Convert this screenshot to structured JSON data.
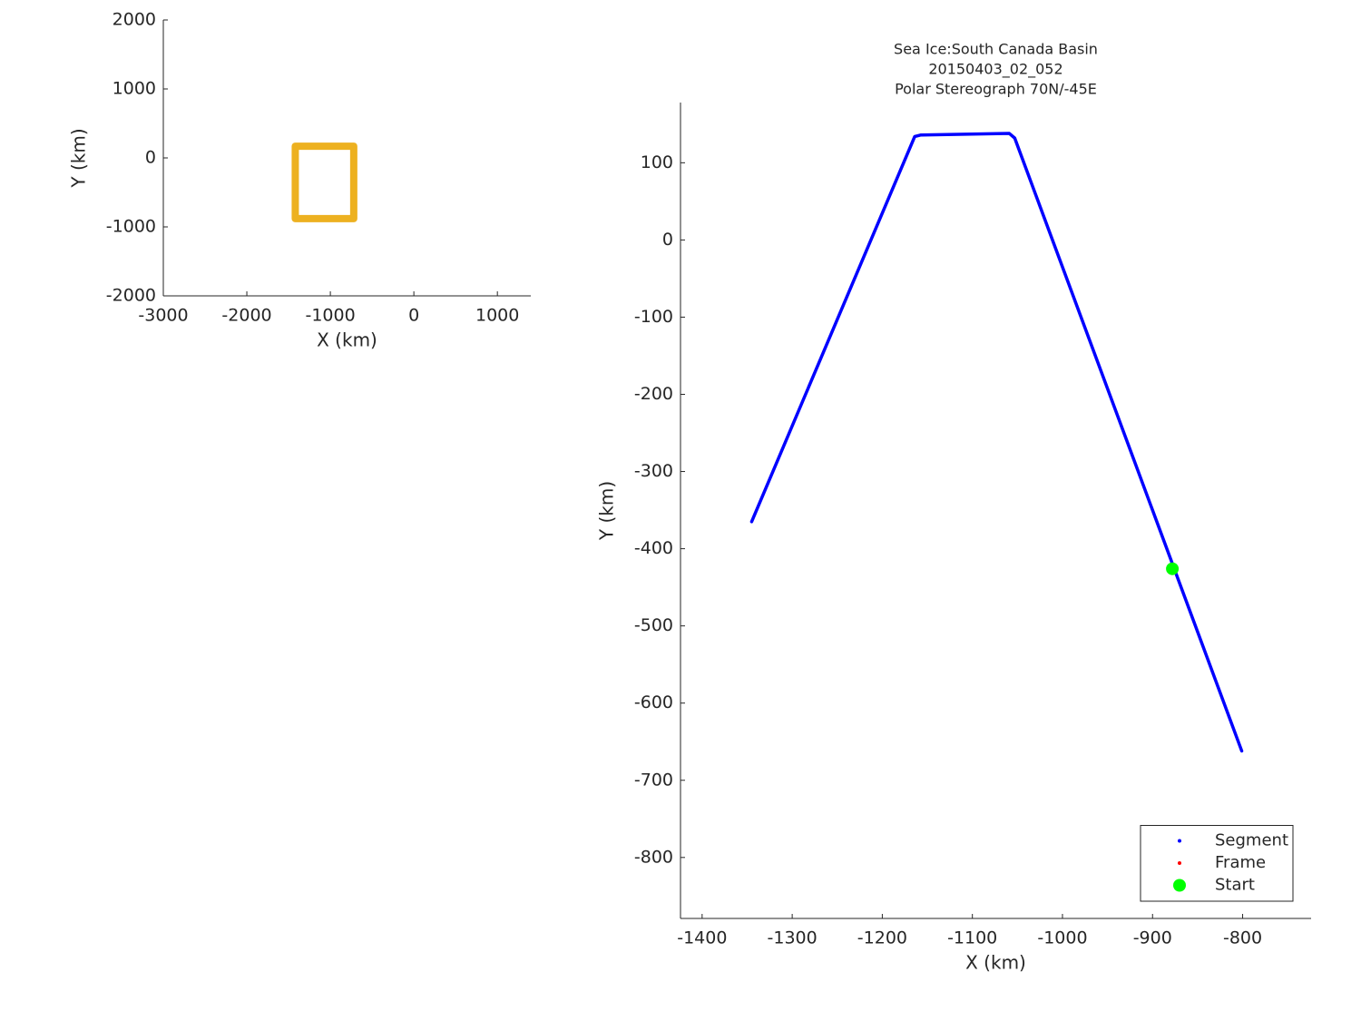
{
  "chart_data": [
    {
      "type": "line",
      "xlabel": "X (km)",
      "ylabel": "Y (km)",
      "xlim": [
        -3000,
        1400
      ],
      "ylim": [
        -2000,
        2000
      ],
      "xticks": [
        -3000,
        -2000,
        -1000,
        0,
        1000
      ],
      "yticks": [
        -2000,
        -1000,
        0,
        1000,
        2000
      ],
      "series": [
        {
          "color": "#edb120",
          "style": "line",
          "x": [
            -1420,
            -720,
            -720,
            -1420,
            -1420
          ],
          "y": [
            170,
            170,
            -880,
            -880,
            170
          ]
        }
      ]
    },
    {
      "type": "line",
      "title": [
        "Sea Ice:South Canada Basin",
        "20150403_02_052",
        "Polar Stereograph 70N/-45E"
      ],
      "xlabel": "X (km)",
      "ylabel": "Y (km)",
      "xlim": [
        -1424,
        -724
      ],
      "ylim": [
        -879,
        178
      ],
      "xticks": [
        -1400,
        -1300,
        -1200,
        -1100,
        -1000,
        -900,
        -800
      ],
      "yticks": [
        -800,
        -700,
        -600,
        -500,
        -400,
        -300,
        -200,
        -100,
        0,
        100
      ],
      "legend": "southeast",
      "series": [
        {
          "name": "Segment",
          "color": "#0000ff",
          "style": "line",
          "x": [
            -1345,
            -1164,
            -1157,
            -1059,
            -1053,
            -801
          ],
          "y": [
            -365,
            134,
            136,
            138,
            132,
            -662
          ]
        },
        {
          "name": "Frame",
          "color": "#ff0000",
          "style": "marker",
          "x": [],
          "y": []
        },
        {
          "name": "Start",
          "color": "#00ff00",
          "style": "marker",
          "x": [
            -878
          ],
          "y": [
            -426
          ]
        }
      ]
    }
  ]
}
